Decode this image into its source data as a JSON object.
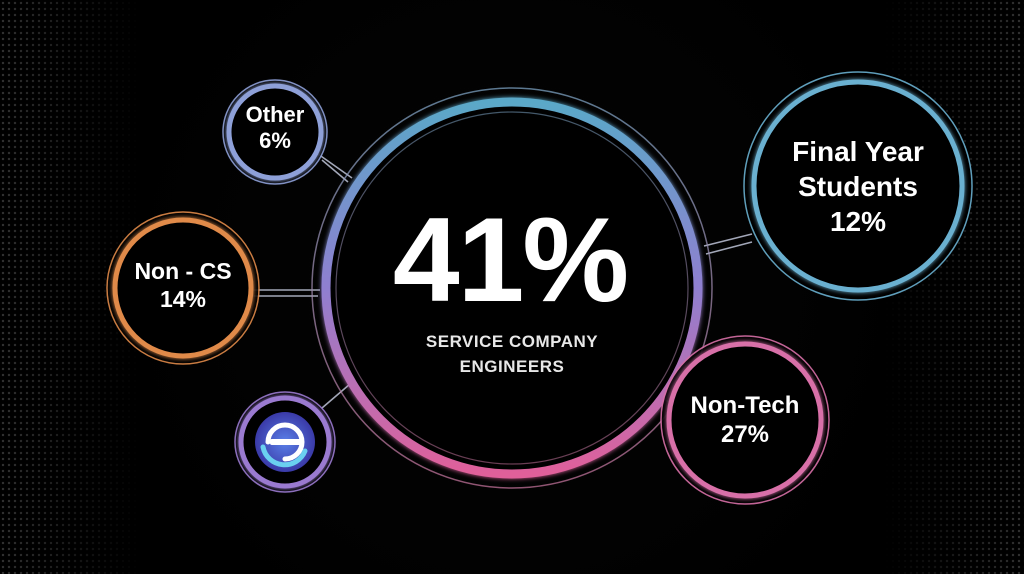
{
  "center": {
    "value": "41%",
    "caption_line1": "SERVICE COMPANY",
    "caption_line2": "ENGINEERS"
  },
  "nodes": {
    "other": {
      "label": "Other",
      "value": "6%"
    },
    "non_cs": {
      "label": "Non - CS",
      "value": "14%"
    },
    "final_year": {
      "label_line1": "Final Year",
      "label_line2": "Students",
      "value": "12%"
    },
    "non_tech": {
      "label": "Non-Tech",
      "value": "27%"
    }
  },
  "colors": {
    "background": "#000000",
    "ring_top": "#5aa8c8",
    "ring_mid": "#8f7fd0",
    "ring_bottom": "#e0609a",
    "other_ring": "#8ea0d8",
    "non_cs_ring": "#e08a4a",
    "final_year_ring": "#6ab0d0",
    "non_tech_ring": "#d870a8",
    "logo_ring": "#9a7ad0"
  },
  "icons": {
    "logo": "brand-e-logo-icon"
  }
}
